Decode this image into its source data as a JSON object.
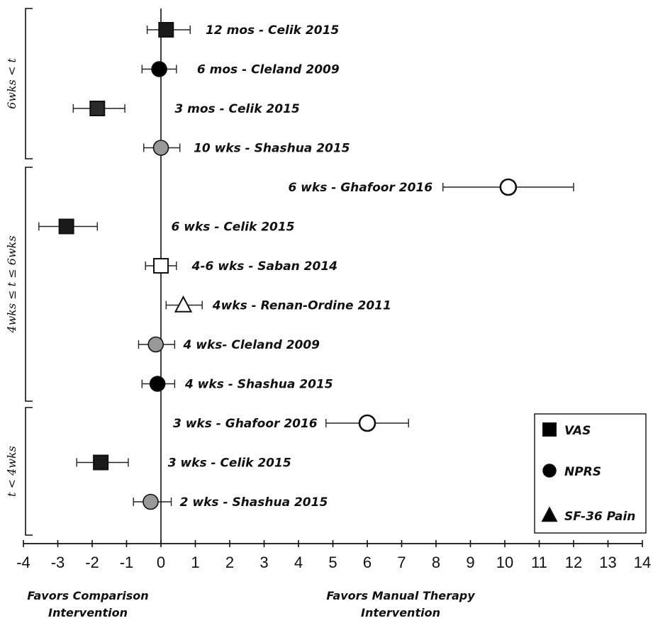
{
  "chart_data": {
    "type": "scatter",
    "subtype": "forest-plot",
    "xlim": [
      -4,
      14
    ],
    "x_ticks": [
      -4,
      -3,
      -2,
      -1,
      0,
      1,
      2,
      3,
      4,
      5,
      6,
      7,
      8,
      9,
      10,
      11,
      12,
      13,
      14
    ],
    "x_tick_labels": [
      "-4",
      "-3",
      "-2",
      "-1",
      "0",
      "1",
      "2",
      "3",
      "4",
      "5",
      "6",
      "7",
      "8",
      "9",
      "10",
      "11",
      "12",
      "13",
      "14"
    ],
    "xlabel_left": "Favors Comparison\nIntervention",
    "xlabel_right": "Favors Manual Therapy\nIntervention",
    "groups": [
      {
        "label": "6wks < t",
        "rows": [
          0,
          3
        ]
      },
      {
        "label": "4wks ≤ t ≤ 6wks",
        "rows": [
          4,
          9
        ]
      },
      {
        "label": "t < 4wks",
        "rows": [
          10,
          12
        ]
      }
    ],
    "studies": [
      {
        "label": "12 mos - Celik 2015",
        "estimate": 0.15,
        "ci": [
          -0.4,
          0.85
        ],
        "measure": "VAS",
        "fill": "#1a1a1a",
        "label_x": 1.3
      },
      {
        "label": "6 mos - Cleland 2009",
        "estimate": -0.05,
        "ci": [
          -0.55,
          0.45
        ],
        "measure": "NPRS",
        "fill": "#000000",
        "label_x": 1.05
      },
      {
        "label": "3 mos - Celik 2015",
        "estimate": -1.85,
        "ci": [
          -2.55,
          -1.05
        ],
        "measure": "VAS",
        "fill": "#2a2a2a",
        "label_x": 0.4
      },
      {
        "label": "10 wks - Shashua 2015",
        "estimate": 0.0,
        "ci": [
          -0.5,
          0.55
        ],
        "measure": "NPRS",
        "fill": "#999999",
        "label_x": 0.95
      },
      {
        "label": "6 wks - Ghafoor 2016",
        "estimate": 10.1,
        "ci": [
          8.2,
          12.0
        ],
        "measure": "NPRS",
        "fill": "#ffffff",
        "label_x": 3.7
      },
      {
        "label": "6 wks - Celik 2015",
        "estimate": -2.75,
        "ci": [
          -3.55,
          -1.85
        ],
        "measure": "VAS",
        "fill": "#1a1a1a",
        "label_x": 0.3
      },
      {
        "label": "4-6 wks - Saban 2014",
        "estimate": 0.0,
        "ci": [
          -0.45,
          0.45
        ],
        "measure": "VAS",
        "fill": "#ffffff",
        "label_x": 0.9
      },
      {
        "label": "4wks - Renan-Ordine 2011",
        "estimate": 0.65,
        "ci": [
          0.15,
          1.2
        ],
        "measure": "SF-36 Pain",
        "fill": "#ffffff",
        "label_x": 1.5
      },
      {
        "label": "4 wks- Cleland 2009",
        "estimate": -0.15,
        "ci": [
          -0.65,
          0.4
        ],
        "measure": "NPRS",
        "fill": "#999999",
        "label_x": 0.65
      },
      {
        "label": "4 wks - Shashua 2015",
        "estimate": -0.1,
        "ci": [
          -0.55,
          0.4
        ],
        "measure": "NPRS",
        "fill": "#000000",
        "label_x": 0.7
      },
      {
        "label": "3 wks - Ghafoor 2016",
        "estimate": 6.0,
        "ci": [
          4.8,
          7.2
        ],
        "measure": "NPRS",
        "fill": "#ffffff",
        "label_x": 0.35
      },
      {
        "label": "3 wks - Celik 2015",
        "estimate": -1.75,
        "ci": [
          -2.45,
          -0.95
        ],
        "measure": "VAS",
        "fill": "#1a1a1a",
        "label_x": 0.2
      },
      {
        "label": "2 wks - Shashua 2015",
        "estimate": -0.3,
        "ci": [
          -0.8,
          0.3
        ],
        "measure": "NPRS",
        "fill": "#999999",
        "label_x": 0.55
      }
    ],
    "legend": {
      "placement": "bottom-right",
      "items": [
        {
          "shape": "VAS",
          "label": "VAS"
        },
        {
          "shape": "NPRS",
          "label": "NPRS"
        },
        {
          "shape": "SF-36 Pain",
          "label": "SF-36 Pain"
        }
      ]
    }
  }
}
